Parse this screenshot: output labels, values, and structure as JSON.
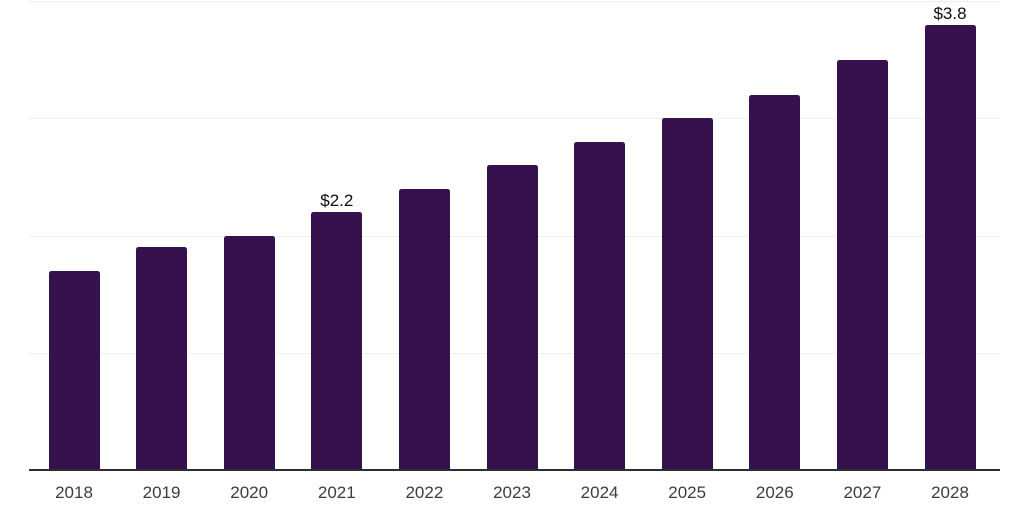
{
  "chart_data": {
    "type": "bar",
    "title": "",
    "xlabel": "",
    "ylabel": "",
    "categories": [
      "2018",
      "2019",
      "2020",
      "2021",
      "2022",
      "2023",
      "2024",
      "2025",
      "2026",
      "2027",
      "2028"
    ],
    "values": [
      1.7,
      1.9,
      2.0,
      2.2,
      2.4,
      2.6,
      2.8,
      3.0,
      3.2,
      3.5,
      3.8
    ],
    "data_labels": [
      {
        "category": "2021",
        "text": "$2.2"
      },
      {
        "category": "2028",
        "text": "$3.8"
      }
    ],
    "ylim": [
      0,
      4
    ],
    "gridline_values": [
      1,
      2,
      3,
      4
    ],
    "grid": "horizontal",
    "legend": "none",
    "colors": {
      "bar": "#35124e",
      "background": "#ffffff",
      "gridline": "#efefef",
      "axis_line": "#2e2e2e",
      "tick_label": "#3d3d3d",
      "data_label": "#0d0d0d"
    }
  }
}
